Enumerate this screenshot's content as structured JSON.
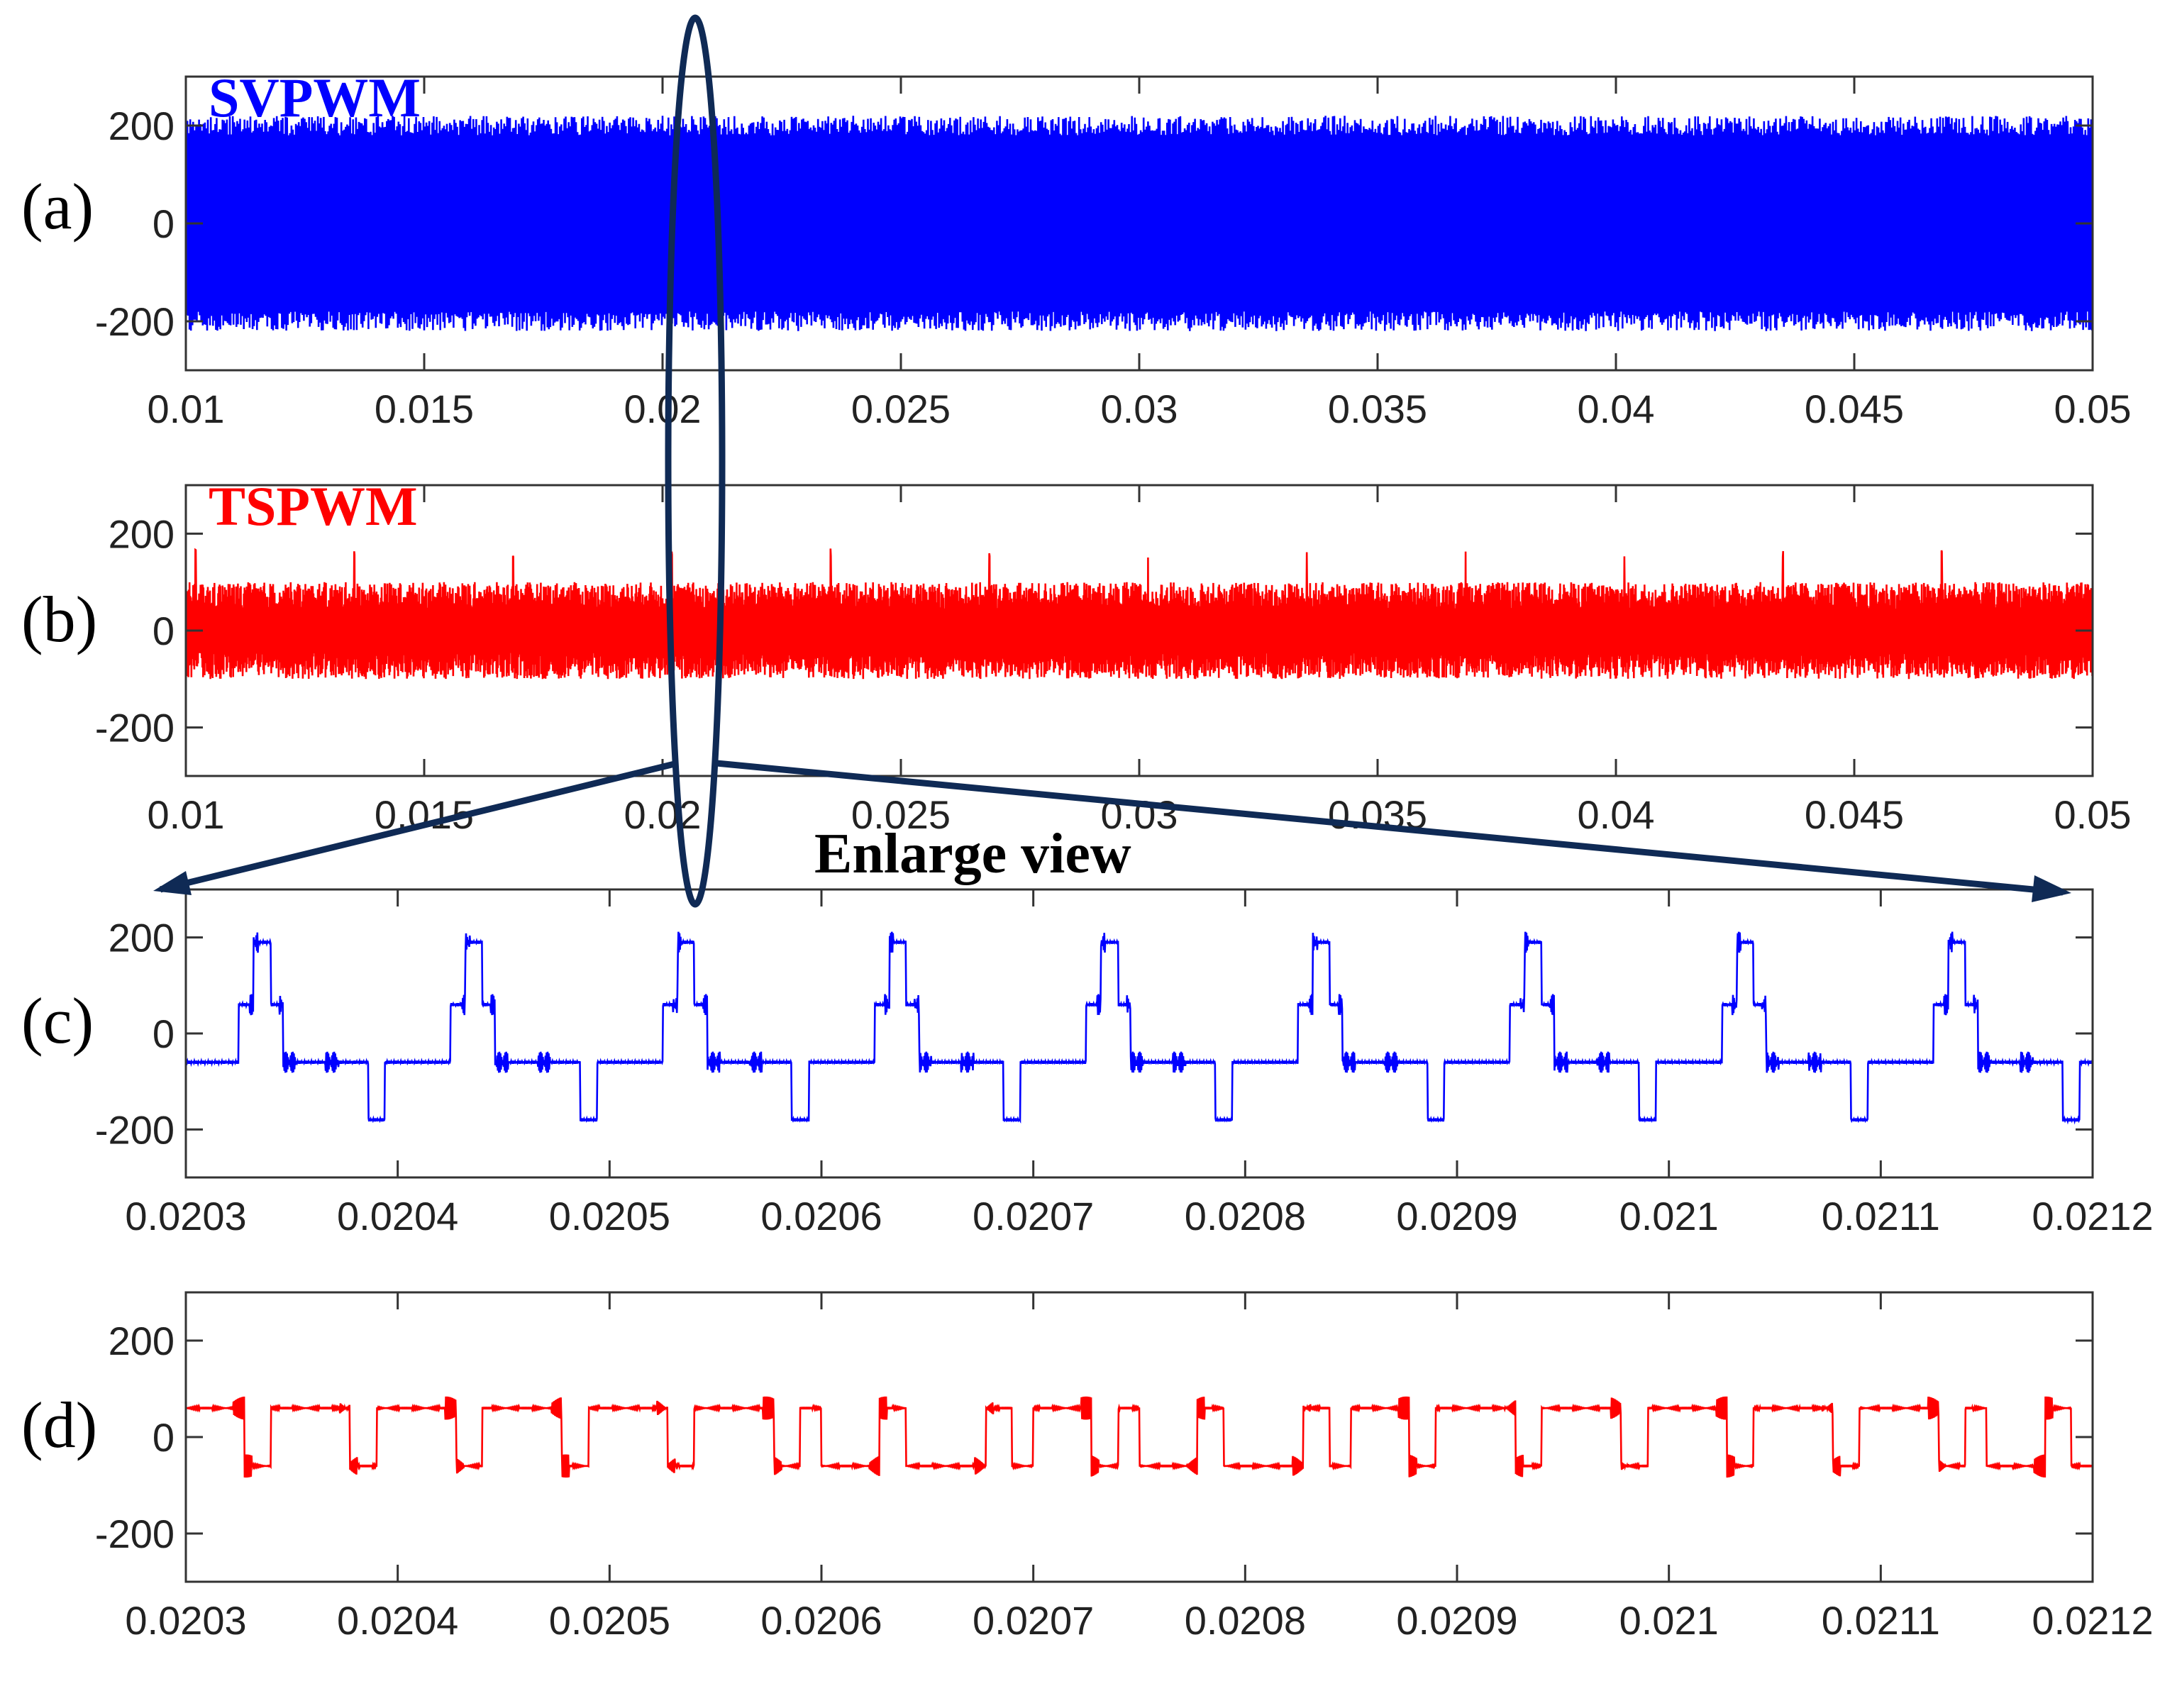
{
  "figure": {
    "enlarge_label": "Enlarge view",
    "annotation_color": "#0f2a55"
  },
  "chart_data": [
    {
      "id": "a",
      "type": "line",
      "panel_label": "(a)",
      "method_label": "SVPWM",
      "color": "#0000ff",
      "signal": "svpwm",
      "xlim": [
        0.01,
        0.05
      ],
      "ylim": [
        -300,
        300
      ],
      "xticks": [
        0.01,
        0.015,
        0.02,
        0.025,
        0.03,
        0.035,
        0.04,
        0.045,
        0.05
      ],
      "xtick_labels": [
        "0.01",
        "0.015",
        "0.02",
        "0.025",
        "0.03",
        "0.035",
        "0.04",
        "0.045",
        "0.05"
      ],
      "yticks": [
        200,
        0,
        -200
      ],
      "ytick_labels": [
        "200",
        "0",
        "-200"
      ],
      "peak_amplitude": 200,
      "fundamental_period": 0.01,
      "switching_period": 0.0001
    },
    {
      "id": "b",
      "type": "line",
      "panel_label": "(b)",
      "method_label": "TSPWM",
      "color": "#ff0000",
      "signal": "tspwm",
      "xlim": [
        0.01,
        0.05
      ],
      "ylim": [
        -300,
        300
      ],
      "xticks": [
        0.01,
        0.015,
        0.02,
        0.025,
        0.03,
        0.035,
        0.04,
        0.045,
        0.05
      ],
      "xtick_labels": [
        "0.01",
        "0.015",
        "0.02",
        "0.025",
        "0.03",
        "0.035",
        "0.04",
        "0.045",
        "0.05"
      ],
      "yticks": [
        200,
        0,
        -200
      ],
      "ytick_labels": [
        "200",
        "0",
        "-200"
      ],
      "peak_amplitude": 100,
      "spike_amplitude": 170
    },
    {
      "id": "c",
      "type": "line",
      "panel_label": "(c)",
      "method_label": "",
      "color": "#0000ff",
      "signal": "svpwm_zoom",
      "xlim": [
        0.0203,
        0.0212
      ],
      "ylim": [
        -300,
        300
      ],
      "xticks": [
        0.0203,
        0.0204,
        0.0205,
        0.0206,
        0.0207,
        0.0208,
        0.0209,
        0.021,
        0.0211,
        0.0212
      ],
      "xtick_labels": [
        "0.0203",
        "0.0204",
        "0.0205",
        "0.0206",
        "0.0207",
        "0.0208",
        "0.0209",
        "0.021",
        "0.0211",
        "0.0212"
      ],
      "yticks": [
        200,
        0,
        -200
      ],
      "ytick_labels": [
        "200",
        "0",
        "-200"
      ],
      "levels": [
        -190,
        -60,
        60,
        190
      ],
      "switching_period": 0.0001
    },
    {
      "id": "d",
      "type": "line",
      "panel_label": "(d)",
      "method_label": "",
      "color": "#ff0000",
      "signal": "tspwm_zoom",
      "xlim": [
        0.0203,
        0.0212
      ],
      "ylim": [
        -300,
        300
      ],
      "xticks": [
        0.0203,
        0.0204,
        0.0205,
        0.0206,
        0.0207,
        0.0208,
        0.0209,
        0.021,
        0.0211,
        0.0212
      ],
      "xtick_labels": [
        "0.0203",
        "0.0204",
        "0.0205",
        "0.0206",
        "0.0207",
        "0.0208",
        "0.0209",
        "0.021",
        "0.0211",
        "0.0212"
      ],
      "yticks": [
        200,
        0,
        -200
      ],
      "ytick_labels": [
        "200",
        "0",
        "-200"
      ],
      "levels": [
        -60,
        60
      ],
      "switching_period": 0.0001
    }
  ]
}
